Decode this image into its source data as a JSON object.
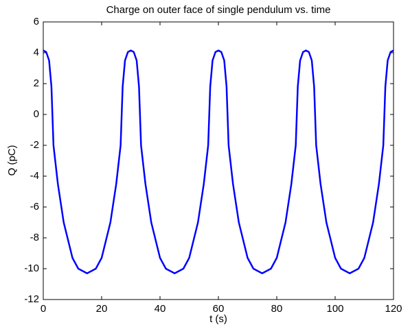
{
  "chart_data": {
    "type": "line",
    "title": "Charge on outer face of single pendulum vs. time",
    "xlabel": "t (s)",
    "ylabel": "Q (pC)",
    "x": [
      0,
      1,
      2,
      2.8,
      3.5,
      5,
      7,
      10,
      12,
      15,
      18,
      20,
      23,
      25,
      26.5,
      27.2,
      28,
      29,
      30,
      31,
      32,
      32.8,
      33.5,
      35,
      37,
      40,
      42,
      45,
      48,
      50,
      53,
      55,
      56.5,
      57.2,
      58,
      59,
      60,
      61,
      62,
      62.8,
      63.5,
      65,
      67,
      70,
      72,
      75,
      78,
      80,
      83,
      85,
      86.5,
      87.2,
      88,
      89,
      90,
      91,
      92,
      92.8,
      93.5,
      95,
      97,
      100,
      102,
      105,
      108,
      110,
      113,
      115,
      116.5,
      117.2,
      118,
      119,
      120
    ],
    "series": [
      {
        "color": "#0000ff",
        "values": [
          4.15,
          4.05,
          3.5,
          1.8,
          -2,
          -4.5,
          -7,
          -9.3,
          -10,
          -10.3,
          -10,
          -9.3,
          -7,
          -4.5,
          -2,
          1.8,
          3.5,
          4.05,
          4.15,
          4.05,
          3.5,
          1.8,
          -2,
          -4.5,
          -7,
          -9.3,
          -10,
          -10.3,
          -10,
          -9.3,
          -7,
          -4.5,
          -2,
          1.8,
          3.5,
          4.05,
          4.15,
          4.05,
          3.5,
          1.8,
          -2,
          -4.5,
          -7,
          -9.3,
          -10,
          -10.3,
          -10,
          -9.3,
          -7,
          -4.5,
          -2,
          1.8,
          3.5,
          4.05,
          4.15,
          4.05,
          3.5,
          1.8,
          -2,
          -4.5,
          -7,
          -9.3,
          -10,
          -10.3,
          -10,
          -9.3,
          -7,
          -4.5,
          -2,
          1.8,
          3.5,
          4.05,
          4.15
        ]
      }
    ],
    "xlim": [
      0,
      120
    ],
    "xticks": [
      0,
      20,
      40,
      60,
      80,
      100,
      120
    ],
    "ylim": [
      -12,
      6
    ],
    "yticks": [
      -12,
      -10,
      -8,
      -6,
      -4,
      -2,
      0,
      2,
      4,
      6
    ],
    "grid": false
  }
}
